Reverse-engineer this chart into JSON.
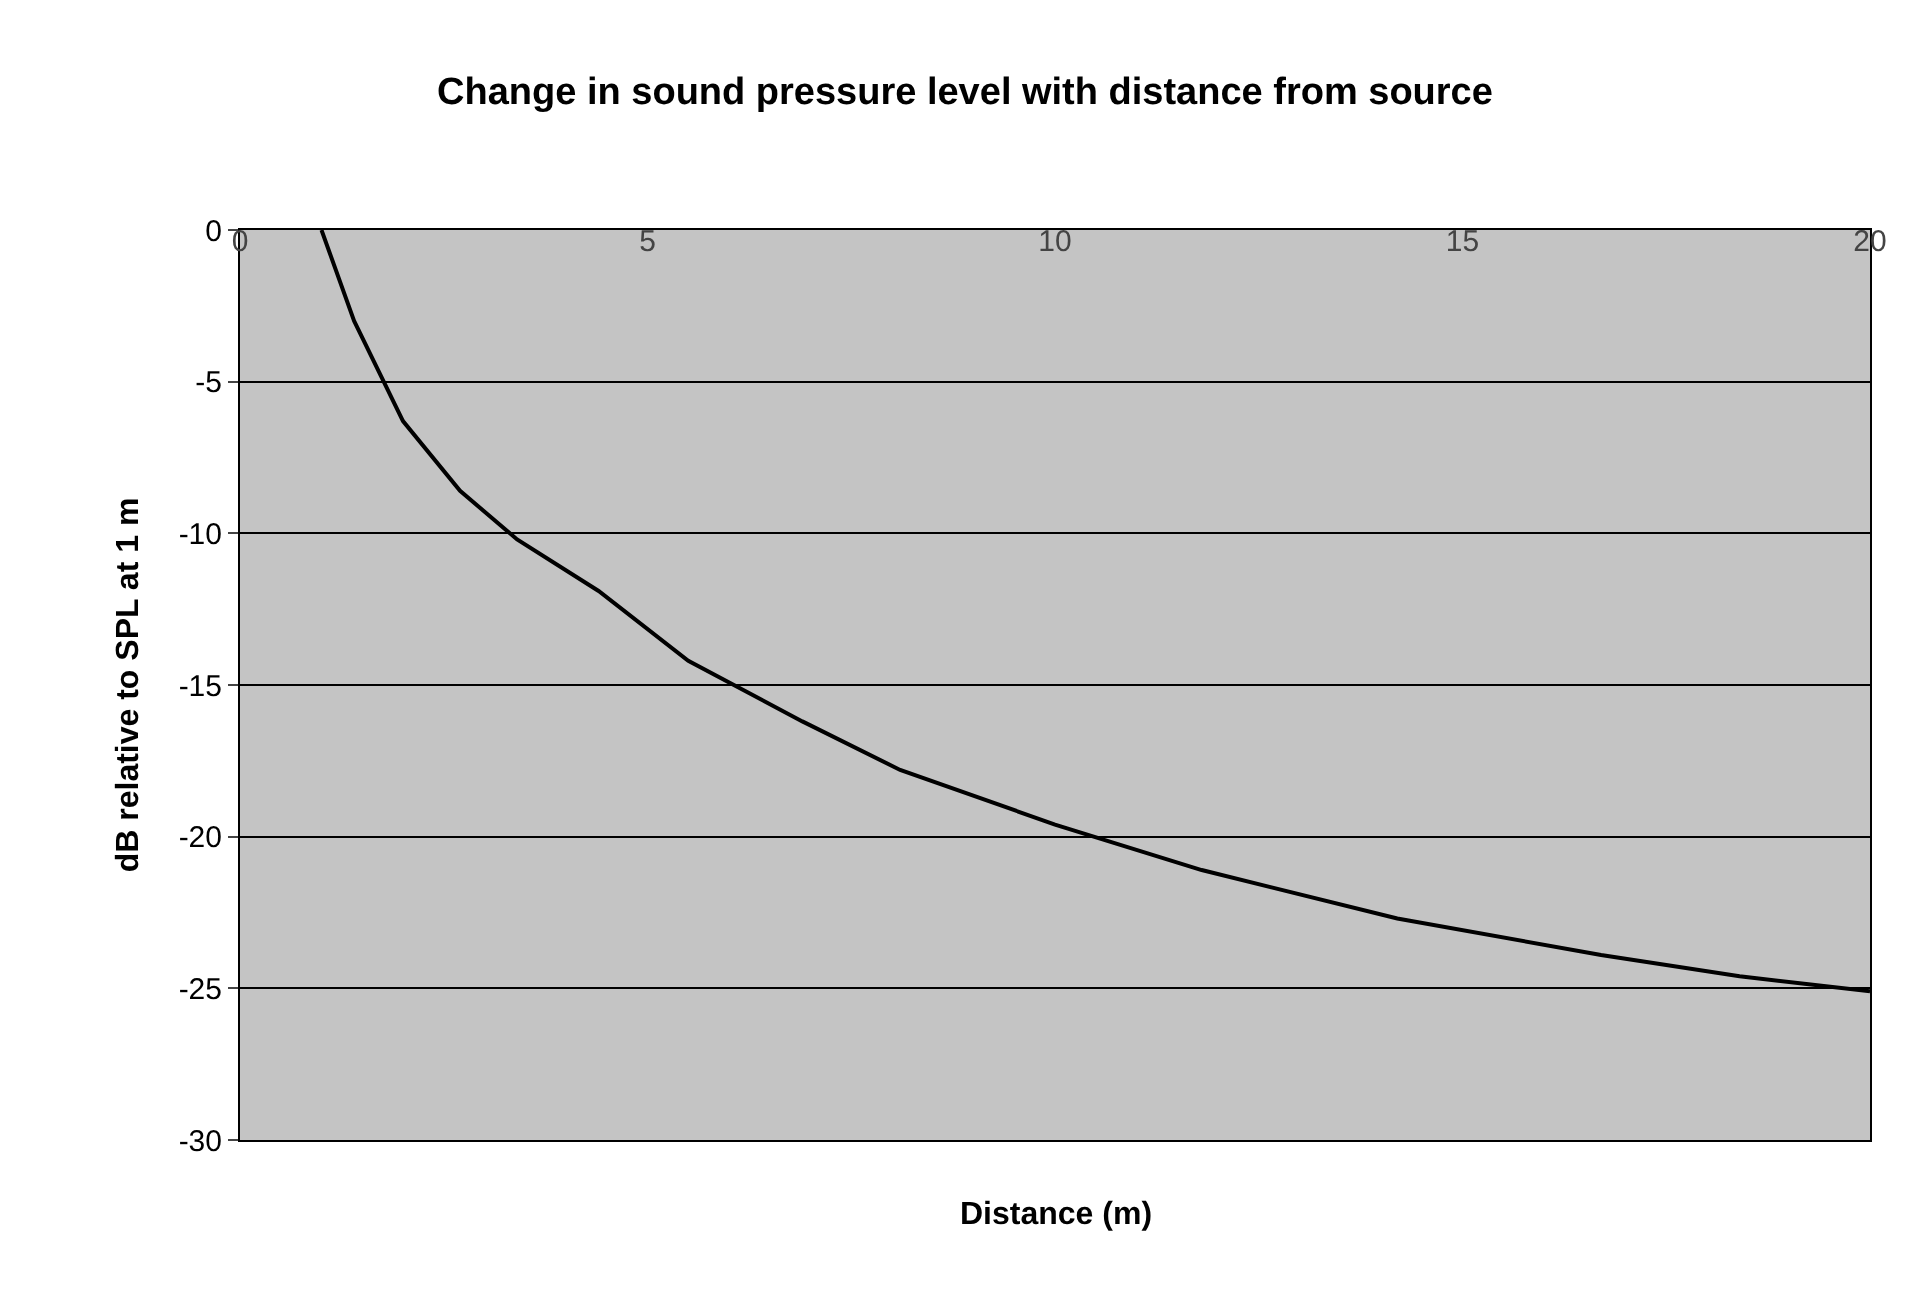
{
  "chart_data": {
    "type": "line",
    "title": "Change in sound pressure level with distance from source",
    "xlabel": "Distance (m)",
    "ylabel": "dB relative to SPL at 1 m",
    "series": [
      {
        "color": "#000000",
        "x": [
          1.0,
          1.4,
          2.0,
          2.7,
          3.4,
          4.4,
          5.5,
          6.9,
          8.1,
          10.0,
          11.8,
          14.2,
          16.7,
          18.4,
          20.0
        ],
        "values": [
          0,
          -3,
          -6.3,
          -8.6,
          -10.2,
          -11.9,
          -14.2,
          -16.2,
          -17.8,
          -19.6,
          -21.1,
          -22.7,
          -23.9,
          -24.6,
          -25.1
        ]
      }
    ],
    "xlim": [
      0,
      20
    ],
    "xticks": [
      0,
      5,
      10,
      15,
      20
    ],
    "ylim": [
      -30,
      0
    ],
    "yticks": [
      -30,
      -25,
      -20,
      -15,
      -10,
      -5,
      0
    ],
    "grid": "y",
    "marker": "none",
    "line_style": "solid"
  }
}
